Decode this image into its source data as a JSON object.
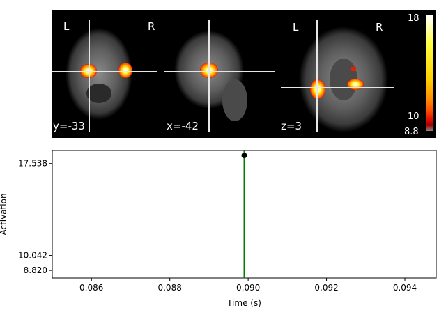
{
  "brain_view": {
    "panels": [
      {
        "left_label": "L",
        "right_label": "R",
        "coord_label": "y=-33"
      },
      {
        "coord_label": "x=-42"
      },
      {
        "left_label": "L",
        "right_label": "R",
        "coord_label": "z=3"
      }
    ],
    "colorbar": {
      "top_label": "18",
      "mid_label": "10",
      "bottom_label": "8.8",
      "colormap": [
        "#ffffff",
        "#ffff40",
        "#ffd000",
        "#ff9000",
        "#ff5000",
        "#e01000",
        "#a00000",
        "#888888"
      ]
    }
  },
  "chart_data": {
    "type": "line",
    "title": "",
    "xlabel": "Time (s)",
    "ylabel": "Activation",
    "xlim": [
      0.085,
      0.0948
    ],
    "ylim": [
      8.2,
      18.6
    ],
    "x_ticks": [
      0.086,
      0.088,
      0.09,
      0.092,
      0.094
    ],
    "x_tick_labels": [
      "0.086",
      "0.088",
      "0.090",
      "0.092",
      "0.094"
    ],
    "y_ticks": [
      8.82,
      10.042,
      17.538
    ],
    "y_tick_labels": [
      "8.820",
      "10.042",
      "17.538"
    ],
    "current_time": 0.0899,
    "current_time_color": "#008000",
    "series": [
      {
        "x": [
          0.0899
        ],
        "y": [
          18.2
        ],
        "color": "#000000"
      }
    ]
  }
}
